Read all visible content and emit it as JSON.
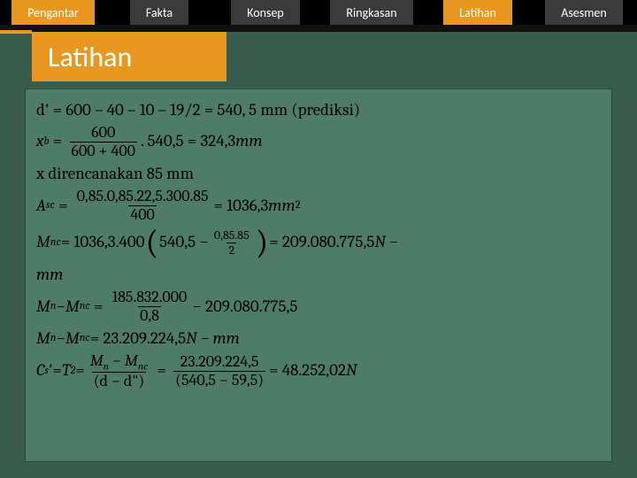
{
  "tabs": {
    "t0": "Pengantar",
    "t1": "Fakta",
    "t2": "Konsep",
    "t3": "Ringkasan",
    "t4": "Latihan",
    "t5": "Asesmen"
  },
  "title": "Latihan",
  "eq": {
    "l1": "d' = 600 – 40 – 10 – 19/2 = 540, 5 mm (prediksi)",
    "xb_lhs": "x",
    "xb_sub": "b",
    "xb_num": "600",
    "xb_den": "600 + 400",
    "xb_mid": " . 540,5 = 324,3",
    "xb_unit": "mm",
    "l3": "x direncanakan 85 mm",
    "asc_lhs": "A",
    "asc_sub": "sc",
    "asc_num": "0,85.0,85.22,5.300.85",
    "asc_den": "400",
    "asc_rhs": " = 1036,3",
    "asc_unit": "mm",
    "asc_sup": "2",
    "mnc_lhs": "M",
    "mnc_sub": "nc",
    "mnc_a": " = 1036,3.400 ",
    "mnc_in1": "540,5 −",
    "mnc_fnum": "0,85.85",
    "mnc_fden": "2",
    "mnc_rhs": " = 209.080.775,5",
    "mnc_unit1": "N −",
    "mnc_unit2": "mm",
    "d_lhs1": "M",
    "d_sub1": "n",
    "d_mid": " − ",
    "d_lhs2": "M",
    "d_sub2": "nc",
    "d_num": "185.832.000",
    "d_den": "0,8",
    "d_rhs": " − 209.080.775,5",
    "e_rhs": " = 23.209.224,5",
    "e_unit": "N − mm",
    "cs_lhs": "C",
    "cs_sub": "s",
    "cs_prime": "′",
    "cs_eq": " = ",
    "cs_t": "T",
    "cs_tsub": "2",
    "cs_f1num_a": "M",
    "cs_f1num_asub": "n",
    "cs_f1num_b": "M",
    "cs_f1num_bsub": "nc",
    "cs_f1den": "(d − d\")",
    "cs_f2num": "23.209.224,5",
    "cs_f2den": "(540,5 − 59,5)",
    "cs_rhs": " = 48.252,02",
    "cs_unit": "N"
  },
  "colors": {
    "accent": "#e89820",
    "panel": "#4f7c6a",
    "bg": "#3a5c4f"
  }
}
